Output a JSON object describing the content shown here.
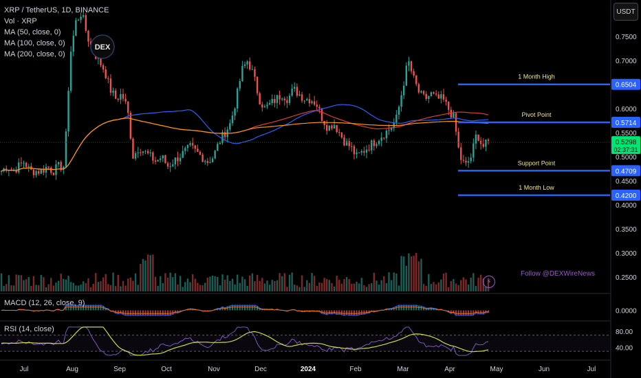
{
  "header": {
    "symbol_line": "XRP / TetherUS, 1D, BINANCE",
    "indicators": [
      "Vol · XRP",
      "MA (50, close, 0)",
      "MA (100, close, 0)",
      "MA (200, close, 0)"
    ],
    "currency": "USDT"
  },
  "logo": {
    "text": "DEX"
  },
  "watermark": {
    "text": "Follow @DEXWireNews"
  },
  "macd_pane": {
    "label": "MACD (12, 26, close, 9)"
  },
  "rsi_pane": {
    "label": "RSI (14, close)"
  },
  "colors": {
    "up": "#26a69a",
    "down": "#ef5350",
    "ma50": "#2962ff",
    "ma100": "#e53935",
    "ma200": "#ff9800",
    "level": "#2962ff",
    "rsi": "#7e57c2",
    "rsi_ma": "#cddc39",
    "current": "#00e676"
  },
  "chart_data": [
    {
      "type": "candlestick",
      "title": "XRP / TetherUS, 1D, BINANCE",
      "x_ticks": [
        "Jul",
        "Aug",
        "Sep",
        "Oct",
        "Nov",
        "Dec",
        "2024",
        "Feb",
        "Mar",
        "Apr",
        "May",
        "Jun",
        "Jul"
      ],
      "y_ticks": [
        0.75,
        0.7,
        0.65,
        0.6,
        0.55,
        0.5,
        0.45,
        0.4,
        0.35,
        0.3,
        0.25
      ],
      "y_tick_labels": [
        "0.7500",
        "0.7000",
        "0.6500",
        "0.6000",
        "0.5500",
        "0.5000",
        "0.4500",
        "0.4000",
        "0.3500",
        "0.3000",
        "0.2500"
      ],
      "ylim": [
        0.22,
        0.82
      ],
      "current_price": {
        "value": 0.5298,
        "label": "0.5298",
        "countdown": "02:37:31"
      },
      "price_path": [
        [
          "Jul",
          0.47
        ],
        [
          "Jul",
          0.48
        ],
        [
          "Jul",
          0.47
        ],
        [
          "Jul",
          0.48
        ],
        [
          "Jul",
          0.49
        ],
        [
          "Jul",
          0.47
        ],
        [
          "Jul",
          0.47
        ],
        [
          "Jul",
          0.47
        ],
        [
          "Jul",
          0.48
        ],
        [
          "Jul",
          0.47
        ],
        [
          "Jul",
          0.48
        ],
        [
          "Jul",
          0.48
        ],
        [
          "Jul",
          0.71
        ],
        [
          "Jul",
          0.78
        ],
        [
          "Jul",
          0.8
        ],
        [
          "Jul",
          0.75
        ],
        [
          "Jul",
          0.72
        ],
        [
          "Aug",
          0.7
        ],
        [
          "Aug",
          0.68
        ],
        [
          "Aug",
          0.64
        ],
        [
          "Aug",
          0.62
        ],
        [
          "Aug",
          0.63
        ],
        [
          "Aug",
          0.6
        ],
        [
          "Aug",
          0.5
        ],
        [
          "Aug",
          0.52
        ],
        [
          "Aug",
          0.51
        ],
        [
          "Sep",
          0.5
        ],
        [
          "Sep",
          0.49
        ],
        [
          "Sep",
          0.5
        ],
        [
          "Sep",
          0.48
        ],
        [
          "Sep",
          0.49
        ],
        [
          "Sep",
          0.5
        ],
        [
          "Sep",
          0.51
        ],
        [
          "Oct",
          0.52
        ],
        [
          "Oct",
          0.51
        ],
        [
          "Oct",
          0.5
        ],
        [
          "Oct",
          0.49
        ],
        [
          "Oct",
          0.5
        ],
        [
          "Oct",
          0.53
        ],
        [
          "Oct",
          0.55
        ],
        [
          "Oct",
          0.57
        ],
        [
          "Nov",
          0.62
        ],
        [
          "Nov",
          0.68
        ],
        [
          "Nov",
          0.7
        ],
        [
          "Nov",
          0.67
        ],
        [
          "Nov",
          0.62
        ],
        [
          "Nov",
          0.6
        ],
        [
          "Nov",
          0.61
        ],
        [
          "Nov",
          0.62
        ],
        [
          "Dec",
          0.63
        ],
        [
          "Dec",
          0.62
        ],
        [
          "Dec",
          0.64
        ],
        [
          "Dec",
          0.63
        ],
        [
          "Dec",
          0.62
        ],
        [
          "Dec",
          0.62
        ],
        [
          "Dec",
          0.61
        ],
        [
          "2024",
          0.58
        ],
        [
          "2024",
          0.56
        ],
        [
          "2024",
          0.57
        ],
        [
          "2024",
          0.55
        ],
        [
          "2024",
          0.53
        ],
        [
          "2024",
          0.52
        ],
        [
          "Feb",
          0.5
        ],
        [
          "Feb",
          0.51
        ],
        [
          "Feb",
          0.52
        ],
        [
          "Feb",
          0.53
        ],
        [
          "Feb",
          0.54
        ],
        [
          "Feb",
          0.55
        ],
        [
          "Feb",
          0.56
        ],
        [
          "Mar",
          0.58
        ],
        [
          "Mar",
          0.64
        ],
        [
          "Mar",
          0.7
        ],
        [
          "Mar",
          0.66
        ],
        [
          "Mar",
          0.63
        ],
        [
          "Mar",
          0.62
        ],
        [
          "Mar",
          0.63
        ],
        [
          "Mar",
          0.62
        ],
        [
          "Apr",
          0.62
        ],
        [
          "Apr",
          0.6
        ],
        [
          "Apr",
          0.58
        ],
        [
          "Apr",
          0.5
        ],
        [
          "Apr",
          0.48
        ],
        [
          "Apr",
          0.5
        ],
        [
          "Apr",
          0.55
        ],
        [
          "Apr",
          0.52
        ],
        [
          "Apr",
          0.53
        ]
      ],
      "levels": [
        {
          "name": "1 Month High",
          "value": 0.6504,
          "label": "0.6504",
          "start": "Apr"
        },
        {
          "name": "Pivot Point",
          "value": 0.5714,
          "label": "0.5714",
          "start": "Apr"
        },
        {
          "name": "Support Point",
          "value": 0.4709,
          "label": "0.4709",
          "start": "Apr"
        },
        {
          "name": "1 Month Low",
          "value": 0.42,
          "label": "0.4200",
          "start": "Apr"
        }
      ]
    },
    {
      "type": "line",
      "title": "MACD (12, 26, close, 9)",
      "y_ticks": [
        0
      ],
      "y_tick_labels": [
        "0.0000"
      ]
    },
    {
      "type": "line",
      "title": "RSI (14, close)",
      "y_ticks": [
        80,
        40
      ],
      "y_tick_labels": [
        "80.00",
        "40.00"
      ],
      "ylim": [
        15,
        100
      ]
    }
  ]
}
